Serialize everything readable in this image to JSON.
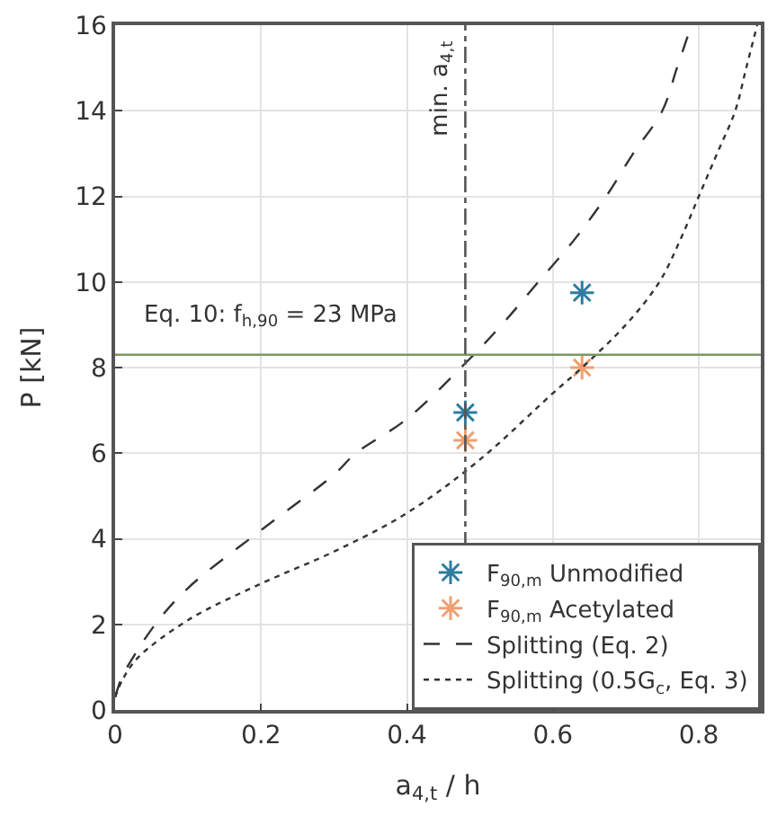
{
  "chart_data": {
    "type": "line",
    "xlabel": "a$_{4,t}$ / h",
    "ylabel": "P [kN]",
    "xlim": [
      0,
      0.885
    ],
    "xticks": [
      0,
      0.2,
      0.4,
      0.6,
      0.8
    ],
    "ylim": [
      0,
      16
    ],
    "yticks": [
      0,
      2,
      4,
      6,
      8,
      10,
      12,
      14,
      16
    ],
    "grid": true,
    "legend": "bottom right",
    "series": [
      {
        "name": "F$_{90,m}$ Unmodified",
        "type": "scatter",
        "marker": "cross",
        "color": "#2e7ca0",
        "x": [
          0.48,
          0.64
        ],
        "values": [
          6.95,
          9.75
        ]
      },
      {
        "name": "F$_{90,m}$ Acetylated",
        "type": "scatter",
        "marker": "cross",
        "color": "#f0a070",
        "x": [
          0.48,
          0.64
        ],
        "values": [
          6.3,
          8.0
        ]
      },
      {
        "name": "Splitting (Eq. 2)",
        "line_style": "dashed",
        "color": "#333333",
        "x": [
          0,
          0.01,
          0.02,
          0.055,
          0.1,
          0.2,
          0.3,
          0.33,
          0.4,
          0.48,
          0.53,
          0.58,
          0.63,
          0.673,
          0.71,
          0.75,
          0.77,
          0.79
        ],
        "values": [
          0.3,
          0.8,
          1.1,
          2,
          2.85,
          4.2,
          5.5,
          6,
          6.8,
          8.1,
          9,
          10,
          11,
          12,
          13,
          14,
          15,
          16
        ]
      },
      {
        "name": "Splitting (0.5G$_{c}$, Eq. 3)",
        "line_style": "dotted",
        "color": "#333333",
        "x": [
          0,
          0.01,
          0.03,
          0.1,
          0.2,
          0.3,
          0.4,
          0.5,
          0.6,
          0.64,
          0.7,
          0.746,
          0.775,
          0.8,
          0.825,
          0.85,
          0.865,
          0.88
        ],
        "values": [
          0.3,
          0.7,
          1.2,
          2.1,
          2.95,
          3.7,
          4.6,
          5.85,
          7.4,
          8.0,
          9.0,
          10,
          11,
          12,
          13,
          14,
          15,
          16
        ]
      }
    ],
    "ref_lines": [
      {
        "axis": "y",
        "value": 8.3,
        "color": "#7a9a60",
        "line_style": "solid"
      },
      {
        "axis": "x",
        "value": 0.48,
        "label": "min. a$_{4,t}$",
        "color": "#555555",
        "line_style": "dashdot"
      }
    ],
    "annotations": [
      "Eq. 10: f$_{h,90}$ = 23 MPa"
    ]
  }
}
